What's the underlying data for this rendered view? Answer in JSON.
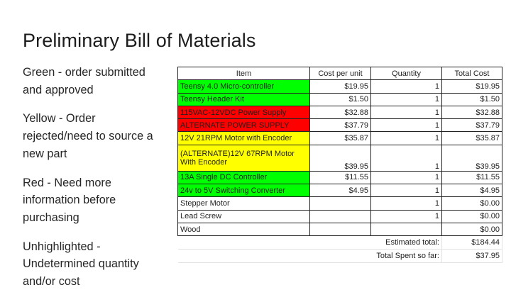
{
  "title": "Preliminary Bill of Materials",
  "legend": [
    "Green - order submitted and approved",
    "Yellow - Order rejected/need to source a new part",
    "Red - Need more information before purchasing",
    "Unhighlighted - Undetermined quantity and/or cost"
  ],
  "table": {
    "headers": [
      "Item",
      "Cost per unit",
      "Quantity",
      "Total Cost"
    ],
    "rows": [
      {
        "item": "Teensy 4.0 Micro-controller",
        "cost": "$19.95",
        "qty": "1",
        "total": "$19.95",
        "color": "green"
      },
      {
        "item": "Teensy Header Kit",
        "cost": "$1.50",
        "qty": "1",
        "total": "$1.50",
        "color": "green"
      },
      {
        "item": "115VAC-12VDC Power Supply",
        "cost": "$32.88",
        "qty": "1",
        "total": "$32.88",
        "color": "red"
      },
      {
        "item": "ALTERNATE POWER SUPPLY",
        "cost": "$37.79",
        "qty": "1",
        "total": "$37.79",
        "color": "red"
      },
      {
        "item": "12V 21RPM Motor with Encoder",
        "cost": "$35.87",
        "qty": "1",
        "total": "$35.87",
        "color": "yellow"
      },
      {
        "item": "(ALTERNATE)12V 67RPM Motor With Encoder",
        "cost": "$39.95",
        "qty": "1",
        "total": "$39.95",
        "color": "yellow"
      },
      {
        "item": "13A Single DC Controller",
        "cost": "$11.55",
        "qty": "1",
        "total": "$11.55",
        "color": "green"
      },
      {
        "item": "24v to 5V Switching Converter",
        "cost": "$4.95",
        "qty": "1",
        "total": "$4.95",
        "color": "green"
      },
      {
        "item": "Stepper Motor",
        "cost": "",
        "qty": "1",
        "total": "$0.00",
        "color": "white"
      },
      {
        "item": "Lead Screw",
        "cost": "",
        "qty": "1",
        "total": "$0.00",
        "color": "white"
      },
      {
        "item": "Wood",
        "cost": "",
        "qty": "",
        "total": "$0.00",
        "color": "white"
      }
    ],
    "summary": [
      {
        "label": "Estimated total:",
        "value": "$184.44"
      },
      {
        "label": "Total Spent so far:",
        "value": "$37.95"
      }
    ]
  },
  "colors": {
    "green": "#00ff00",
    "yellow": "#ffff00",
    "red": "#ff0000"
  }
}
